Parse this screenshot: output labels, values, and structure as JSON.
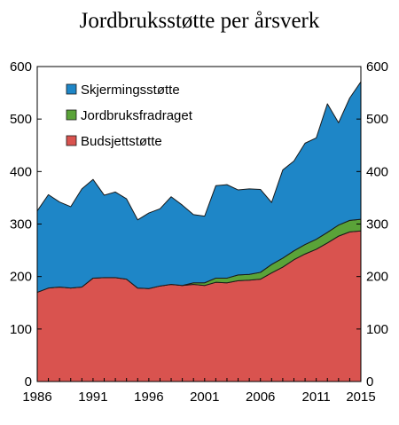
{
  "chart_data": {
    "type": "area",
    "stacked": true,
    "title": "Jordbruksstøtte per årsverk",
    "xlabel": "",
    "ylabel": "",
    "x": [
      1986,
      1987,
      1988,
      1989,
      1990,
      1991,
      1992,
      1993,
      1994,
      1995,
      1996,
      1997,
      1998,
      1999,
      2000,
      2001,
      2002,
      2003,
      2004,
      2005,
      2006,
      2007,
      2008,
      2009,
      2010,
      2011,
      2012,
      2013,
      2014,
      2015
    ],
    "xticks": [
      "1986",
      "1991",
      "1996",
      "2001",
      "2006",
      "2011",
      "2015"
    ],
    "yticks": [
      "0",
      "100",
      "200",
      "300",
      "400",
      "500",
      "600"
    ],
    "ylim": [
      0,
      600
    ],
    "xlim": [
      1986,
      2015
    ],
    "legend_position": "top-left",
    "grid": false,
    "series": [
      {
        "name": "Budsjettstøtte",
        "color": "#d9534f",
        "values": [
          170,
          178,
          180,
          178,
          180,
          197,
          198,
          198,
          195,
          178,
          177,
          182,
          185,
          183,
          185,
          183,
          189,
          188,
          192,
          193,
          195,
          207,
          218,
          232,
          243,
          252,
          264,
          277,
          285,
          287
        ]
      },
      {
        "name": "Jordbruksfradraget",
        "color": "#5aa338",
        "values": [
          0,
          0,
          0,
          0,
          0,
          0,
          0,
          0,
          0,
          0,
          0,
          0,
          0,
          0,
          3,
          5,
          8,
          9,
          11,
          11,
          13,
          16,
          17,
          17,
          18,
          19,
          20,
          21,
          22,
          22
        ]
      },
      {
        "name": "Skjermingsstøtte",
        "color": "#1e86c7",
        "values": [
          155,
          178,
          162,
          155,
          187,
          188,
          157,
          163,
          153,
          130,
          144,
          147,
          167,
          153,
          130,
          127,
          176,
          178,
          162,
          163,
          158,
          118,
          168,
          171,
          193,
          193,
          245,
          195,
          233,
          262
        ]
      }
    ]
  }
}
